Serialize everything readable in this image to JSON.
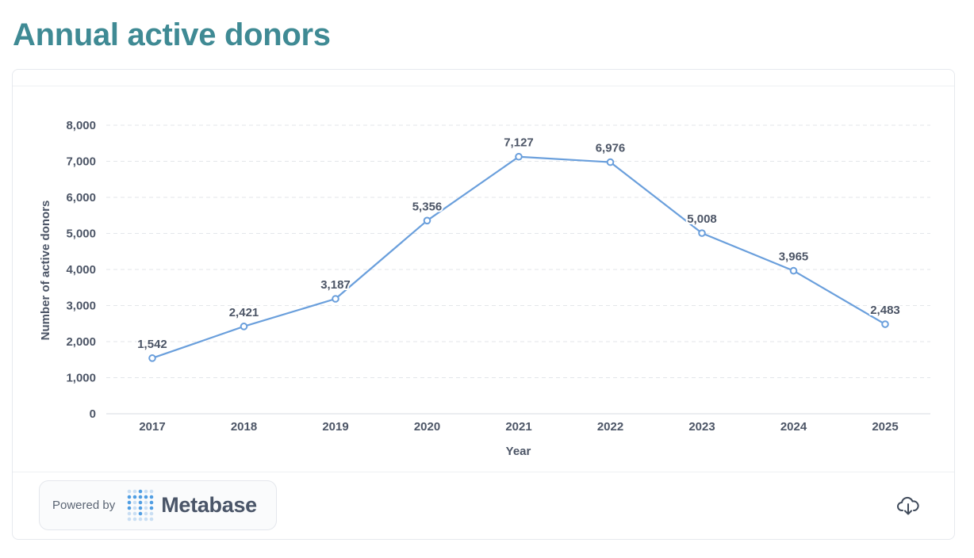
{
  "page": {
    "title": "Annual active donors"
  },
  "footer": {
    "powered_by": "Powered by",
    "brand": "Metabase"
  },
  "icons": {
    "download": "download-cloud-icon",
    "logo": "metabase-logo-icon"
  },
  "colors": {
    "title": "#3f8a94",
    "series": "#6a9fdc",
    "grid": "#e3e6ea"
  },
  "chart_data": {
    "type": "line",
    "title": "",
    "xlabel": "Year",
    "ylabel": "Number of active donors",
    "x": [
      "2017",
      "2018",
      "2019",
      "2020",
      "2021",
      "2022",
      "2023",
      "2024",
      "2025"
    ],
    "series": [
      {
        "values": [
          1542,
          2421,
          3187,
          5356,
          7127,
          6976,
          5008,
          3965,
          2483
        ],
        "data_labels": [
          "1,542",
          "2,421",
          "3,187",
          "5,356",
          "7,127",
          "6,976",
          "5,008",
          "3,965",
          "2,483"
        ]
      }
    ],
    "ylim": [
      0,
      8000
    ],
    "yticks": [
      0,
      1000,
      2000,
      3000,
      4000,
      5000,
      6000,
      7000,
      8000
    ],
    "ytick_labels": [
      "0",
      "1,000",
      "2,000",
      "3,000",
      "4,000",
      "5,000",
      "6,000",
      "7,000",
      "8,000"
    ],
    "grid": true,
    "legend": "none"
  }
}
